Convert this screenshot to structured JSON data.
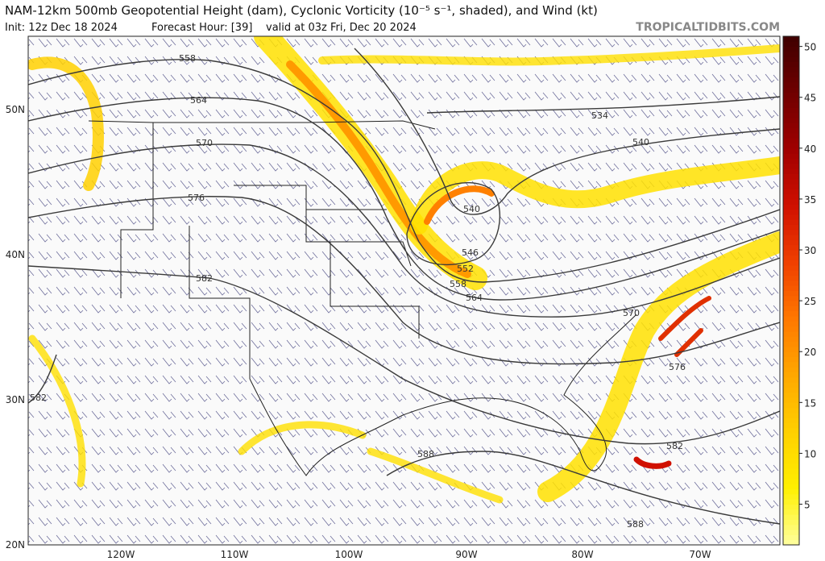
{
  "header": {
    "title": "NAM-12km 500mb Geopotential Height (dam), Cyclonic Vorticity (10⁻⁵ s⁻¹, shaded), and Wind (kt)",
    "init": "Init: 12z Dec 18 2024",
    "forecast_hour": "Forecast Hour: [39]",
    "valid": "valid at 03z Fri, Dec 20 2024",
    "watermark": "TROPICALTIDBITS.COM"
  },
  "map": {
    "lat_labels": [
      "50N",
      "40N",
      "30N",
      "20N"
    ],
    "lon_labels": [
      "120W",
      "110W",
      "100W",
      "90W",
      "80W",
      "70W"
    ]
  },
  "height_contours": {
    "labels": [
      558,
      564,
      570,
      576,
      582,
      582,
      534,
      540,
      540,
      546,
      552,
      558,
      564,
      570,
      576,
      582,
      588,
      588
    ]
  },
  "colorbar": {
    "lim": [
      1,
      51
    ],
    "ticks": [
      5,
      10,
      15,
      20,
      25,
      30,
      35,
      40,
      45,
      50
    ],
    "colors": [
      "#ffffa0",
      "#fff000",
      "#ffd000",
      "#ffa800",
      "#ff7800",
      "#f04000",
      "#d01000",
      "#a00000",
      "#700000",
      "#400000"
    ]
  }
}
